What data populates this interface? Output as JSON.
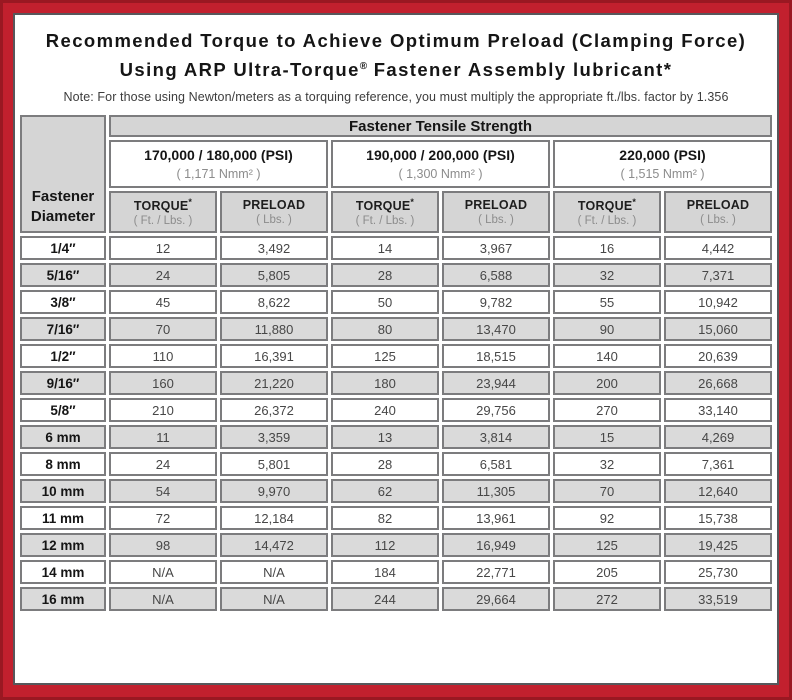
{
  "colors": {
    "frame_red": "#c2202e",
    "frame_edge_dark": "#9a1822",
    "content_border": "#57575b",
    "header_gray": "#d5d5d5",
    "alt_row_gray": "#dadada",
    "cell_border_gray": "#7c7c7e"
  },
  "title": {
    "line1": "Recommended Torque to Achieve Optimum Preload (Clamping Force)",
    "line2_pre": "Using ARP Ultra-Torque",
    "line2_sym": "®",
    "line2_post": " Fastener Assembly lubricant*",
    "note": "Note: For those using Newton/meters as a torquing reference, you must multiply the appropriate ft./lbs. factor by 1.356"
  },
  "table": {
    "corner_line1": "Fastener",
    "corner_line2": "Diameter",
    "group_header": "Fastener Tensile Strength",
    "groups": [
      {
        "psi": "170,000 / 180,000 (PSI)",
        "nmm": "( 1,171 Nmm² )"
      },
      {
        "psi": "190,000 / 200,000 (PSI)",
        "nmm": "( 1,300 Nmm² )"
      },
      {
        "psi": "220,000 (PSI)",
        "nmm": "( 1,515 Nmm² )"
      }
    ],
    "col_headers": {
      "torque": "TORQUE",
      "torque_mark": "*",
      "torque_sub": "( Ft. / Lbs. )",
      "preload": "PRELOAD",
      "preload_sub": "( Lbs. )"
    },
    "rows": [
      {
        "d": "1/4″",
        "v": [
          "12",
          "3,492",
          "14",
          "3,967",
          "16",
          "4,442"
        ]
      },
      {
        "d": "5/16″",
        "v": [
          "24",
          "5,805",
          "28",
          "6,588",
          "32",
          "7,371"
        ]
      },
      {
        "d": "3/8″",
        "v": [
          "45",
          "8,622",
          "50",
          "9,782",
          "55",
          "10,942"
        ]
      },
      {
        "d": "7/16″",
        "v": [
          "70",
          "11,880",
          "80",
          "13,470",
          "90",
          "15,060"
        ]
      },
      {
        "d": "1/2″",
        "v": [
          "110",
          "16,391",
          "125",
          "18,515",
          "140",
          "20,639"
        ]
      },
      {
        "d": "9/16″",
        "v": [
          "160",
          "21,220",
          "180",
          "23,944",
          "200",
          "26,668"
        ]
      },
      {
        "d": "5/8″",
        "v": [
          "210",
          "26,372",
          "240",
          "29,756",
          "270",
          "33,140"
        ]
      },
      {
        "d": "6 mm",
        "v": [
          "11",
          "3,359",
          "13",
          "3,814",
          "15",
          "4,269"
        ]
      },
      {
        "d": "8 mm",
        "v": [
          "24",
          "5,801",
          "28",
          "6,581",
          "32",
          "7,361"
        ]
      },
      {
        "d": "10 mm",
        "v": [
          "54",
          "9,970",
          "62",
          "11,305",
          "70",
          "12,640"
        ]
      },
      {
        "d": "11 mm",
        "v": [
          "72",
          "12,184",
          "82",
          "13,961",
          "92",
          "15,738"
        ]
      },
      {
        "d": "12 mm",
        "v": [
          "98",
          "14,472",
          "112",
          "16,949",
          "125",
          "19,425"
        ]
      },
      {
        "d": "14 mm",
        "v": [
          "N/A",
          "N/A",
          "184",
          "22,771",
          "205",
          "25,730"
        ]
      },
      {
        "d": "16 mm",
        "v": [
          "N/A",
          "N/A",
          "244",
          "29,664",
          "272",
          "33,519"
        ]
      }
    ]
  }
}
